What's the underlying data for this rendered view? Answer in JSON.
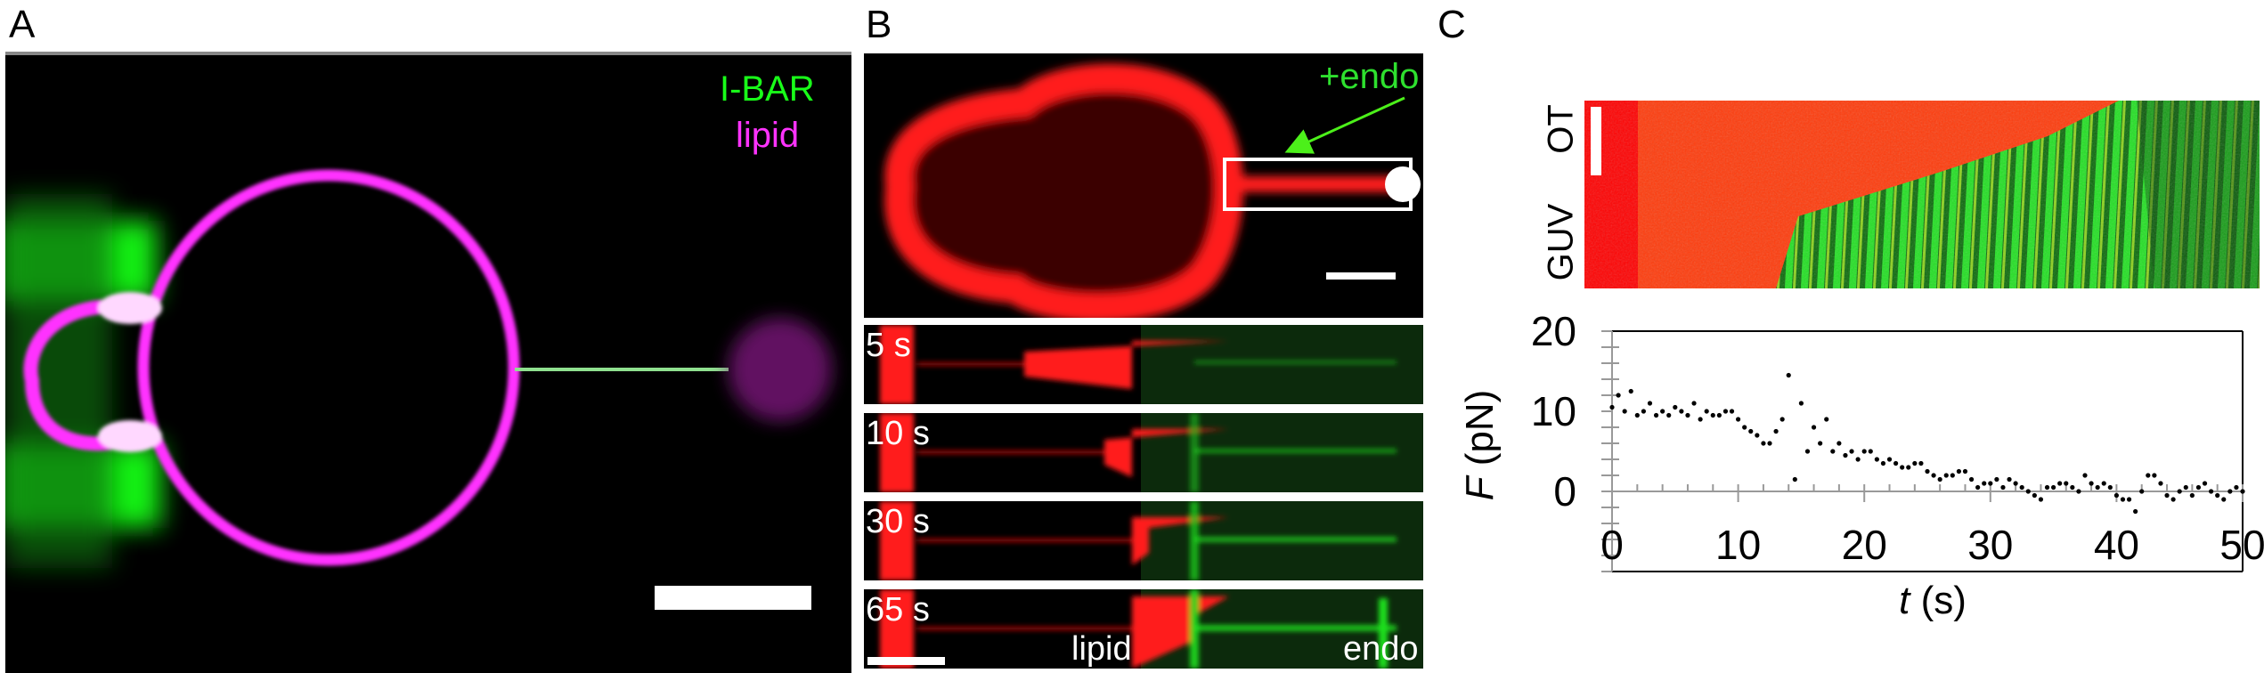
{
  "panels": {
    "a": {
      "label": "A",
      "legend": {
        "green": "I-BAR",
        "magenta": "lipid"
      },
      "colors": {
        "green": "#19ff19",
        "magenta": "#ff33ff"
      }
    },
    "b": {
      "label": "B",
      "annotation": "+endo",
      "strips": [
        {
          "time": "5 s"
        },
        {
          "time": "10 s"
        },
        {
          "time": "30 s"
        },
        {
          "time": "65 s"
        }
      ],
      "channel_labels": {
        "red": "lipid",
        "green": "endo"
      },
      "colors": {
        "red": "#ff1a1a",
        "green": "#1fe01f",
        "arrow": "#4cf01a"
      }
    },
    "c": {
      "label": "C",
      "kymograph": {
        "top_label": "OT",
        "bottom_label": "GUV"
      }
    }
  },
  "chart_data": {
    "type": "scatter",
    "xlabel_italic": "t",
    "xlabel_unit": "(s)",
    "ylabel_italic": "F",
    "ylabel_unit": "(pN)",
    "xlim": [
      0,
      50
    ],
    "ylim": [
      -10,
      20
    ],
    "xticks": [
      "0",
      "10",
      "20",
      "30",
      "40",
      "50"
    ],
    "yticks": [
      "20",
      "10",
      "0"
    ],
    "grid": false,
    "marker_color": "#000000",
    "x": [
      0,
      0.5,
      1,
      1.5,
      2,
      2.5,
      3,
      3.5,
      4,
      4.5,
      5,
      5.5,
      6,
      6.5,
      7,
      7.5,
      8,
      8.5,
      9,
      9.5,
      10,
      10.5,
      11,
      11.5,
      12,
      12.5,
      13,
      13.5,
      14,
      14.5,
      15,
      15.5,
      16,
      16.5,
      17,
      17.5,
      18,
      18.5,
      19,
      19.5,
      20,
      20.5,
      21,
      21.5,
      22,
      22.5,
      23,
      23.5,
      24,
      24.5,
      25,
      25.5,
      26,
      26.5,
      27,
      27.5,
      28,
      28.5,
      29,
      29.5,
      30,
      30.5,
      31,
      31.5,
      32,
      32.5,
      33,
      33.5,
      34,
      34.5,
      35,
      35.5,
      36,
      36.5,
      37,
      37.5,
      38,
      38.5,
      39,
      39.5,
      40,
      40.5,
      41,
      41.5,
      42,
      42.5,
      43,
      43.5,
      44,
      44.5,
      45,
      45.5,
      46,
      46.5,
      47,
      47.5,
      48,
      48.5,
      49,
      49.5,
      50
    ],
    "y": [
      10.5,
      12,
      10,
      12.5,
      9.5,
      10,
      11,
      9.5,
      10,
      9.5,
      10.5,
      10,
      9.5,
      11,
      9,
      10,
      9.5,
      9.5,
      10,
      10,
      9,
      8,
      7.5,
      7,
      6,
      6,
      7.5,
      9,
      14.5,
      1.5,
      11,
      5,
      8,
      6,
      9,
      5,
      6,
      4.5,
      5,
      4,
      5,
      5,
      4,
      3.5,
      4,
      3.5,
      3,
      3,
      3.5,
      3.5,
      2.5,
      2,
      1.5,
      2,
      2,
      2.5,
      2.5,
      1.5,
      0.5,
      1,
      1,
      1.5,
      0.5,
      1.5,
      1,
      0.5,
      0,
      -0.5,
      -1,
      0.5,
      0.5,
      1,
      1,
      0.5,
      0,
      2,
      1,
      0.5,
      1,
      0.5,
      -0.5,
      -1,
      -1,
      -2.5,
      0,
      2,
      2,
      1,
      -0.5,
      -1,
      0,
      0.5,
      -0.5,
      0.5,
      1,
      0,
      -0.5,
      -1,
      0,
      0.5,
      0
    ]
  }
}
